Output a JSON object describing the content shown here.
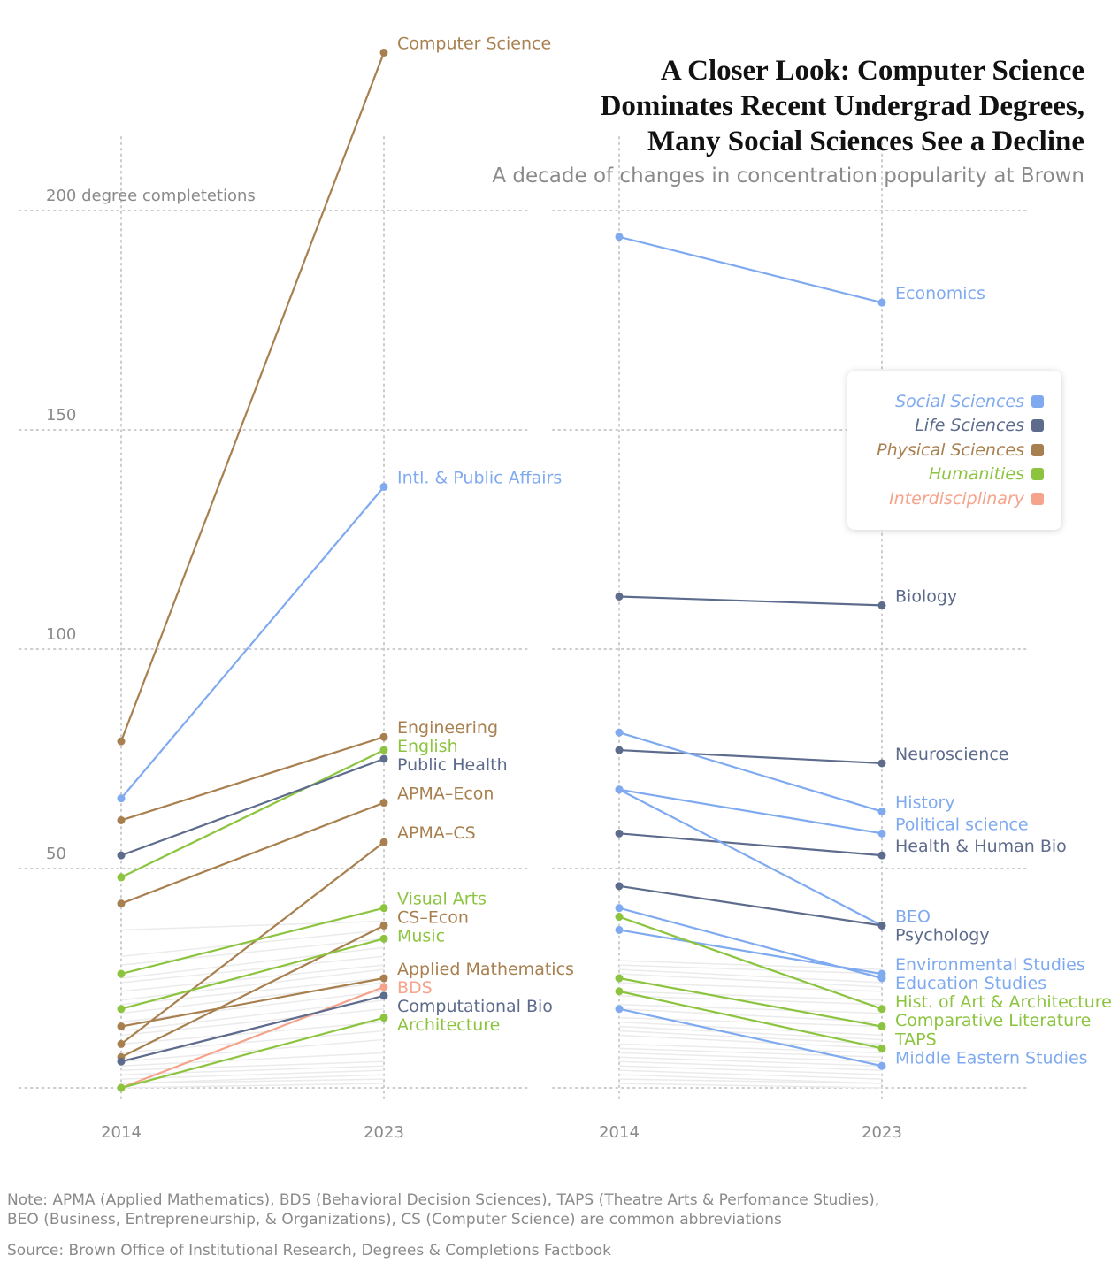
{
  "title_lines": [
    "A Closer Look: Computer Science",
    "Dominates Recent Undergrad Degrees,",
    "Many Social Sciences See a Decline"
  ],
  "subtitle": "A decade of changes in concentration popularity at Brown",
  "note_lines": [
    "Note: APMA (Applied Mathematics), BDS (Behavioral Decision Sciences), TAPS (Theatre Arts & Perfomance Studies),",
    "BEO (Business, Entrepreneurship, & Organizations), CS (Computer Science) are common abbreviations"
  ],
  "source": "Source: Brown Office of Institutional Research, Degrees & Completions Factbook",
  "colors": {
    "Social Sciences": "#7faaf0",
    "Life Sciences": "#5d6b8c",
    "Physical Sciences": "#a8804f",
    "Humanities": "#8cc43f",
    "Interdisciplinary": "#f5a38a",
    "background_lines": "#ebebeb",
    "grid": "#cccccc",
    "axis_text": "#8a8a8a"
  },
  "legend": {
    "items": [
      {
        "label": "Social Sciences",
        "color": "#7faaf0"
      },
      {
        "label": "Life Sciences",
        "color": "#5d6b8c"
      },
      {
        "label": "Physical Sciences",
        "color": "#a8804f"
      },
      {
        "label": "Humanities",
        "color": "#8cc43f"
      },
      {
        "label": "Interdisciplinary",
        "color": "#f5a38a"
      }
    ]
  },
  "chart_data": [
    {
      "type": "line",
      "panel": "left",
      "x": [
        "2014",
        "2023"
      ],
      "ylim": [
        0,
        220
      ],
      "yticks": [
        {
          "value": 50,
          "label": "50"
        },
        {
          "value": 100,
          "label": "100"
        },
        {
          "value": 150,
          "label": "150"
        },
        {
          "value": 200,
          "label": "200 degree completetions"
        }
      ],
      "series": [
        {
          "name": "Computer Science",
          "group": "Physical Sciences",
          "values": [
            79,
            236
          ]
        },
        {
          "name": "Intl. & Public Affairs",
          "group": "Social Sciences",
          "values": [
            66,
            137
          ]
        },
        {
          "name": "Engineering",
          "group": "Physical Sciences",
          "values": [
            61,
            80
          ]
        },
        {
          "name": "English",
          "group": "Humanities",
          "values": [
            48,
            77
          ]
        },
        {
          "name": "Public Health",
          "group": "Life Sciences",
          "values": [
            53,
            75
          ]
        },
        {
          "name": "APMA–Econ",
          "group": "Physical Sciences",
          "values": [
            42,
            65
          ]
        },
        {
          "name": "APMA–CS",
          "group": "Physical Sciences",
          "values": [
            10,
            56
          ]
        },
        {
          "name": "Visual Arts",
          "group": "Humanities",
          "values": [
            26,
            41
          ]
        },
        {
          "name": "CS–Econ",
          "group": "Physical Sciences",
          "values": [
            7,
            37
          ]
        },
        {
          "name": "Music",
          "group": "Humanities",
          "values": [
            18,
            34
          ]
        },
        {
          "name": "Applied Mathematics",
          "group": "Physical Sciences",
          "values": [
            14,
            25
          ]
        },
        {
          "name": "BDS",
          "group": "Interdisciplinary",
          "values": [
            0,
            23
          ]
        },
        {
          "name": "Computational Bio",
          "group": "Life Sciences",
          "values": [
            6,
            21
          ]
        },
        {
          "name": "Architecture",
          "group": "Humanities",
          "values": [
            0,
            16
          ]
        }
      ],
      "background_series": [
        [
          36,
          38
        ],
        [
          30,
          36
        ],
        [
          28,
          34
        ],
        [
          25,
          32
        ],
        [
          24,
          30
        ],
        [
          22,
          28
        ],
        [
          20,
          27
        ],
        [
          19,
          25
        ],
        [
          17,
          24
        ],
        [
          15,
          22
        ],
        [
          13,
          20
        ],
        [
          12,
          18
        ],
        [
          10,
          15
        ],
        [
          8,
          13
        ],
        [
          6,
          11
        ],
        [
          5,
          8
        ],
        [
          4,
          6
        ],
        [
          3,
          5
        ],
        [
          2,
          4
        ],
        [
          1,
          3
        ],
        [
          1,
          2
        ],
        [
          0,
          1
        ]
      ]
    },
    {
      "type": "line",
      "panel": "right",
      "x": [
        "2014",
        "2023"
      ],
      "ylim": [
        0,
        220
      ],
      "series": [
        {
          "name": "Economics",
          "group": "Social Sciences",
          "values": [
            194,
            179
          ]
        },
        {
          "name": "Biology",
          "group": "Life Sciences",
          "values": [
            112,
            110
          ]
        },
        {
          "name": "Neuroscience",
          "group": "Life Sciences",
          "values": [
            77,
            74
          ]
        },
        {
          "name": "History",
          "group": "Social Sciences",
          "values": [
            81,
            63
          ]
        },
        {
          "name": "Political science",
          "group": "Social Sciences",
          "values": [
            68,
            58
          ]
        },
        {
          "name": "Health & Human Bio",
          "group": "Life Sciences",
          "values": [
            58,
            53
          ]
        },
        {
          "name": "BEO",
          "group": "Social Sciences",
          "values": [
            68,
            37
          ]
        },
        {
          "name": "Psychology",
          "group": "Life Sciences",
          "values": [
            46,
            37
          ]
        },
        {
          "name": "Environmental Studies",
          "group": "Social Sciences",
          "values": [
            36,
            26
          ]
        },
        {
          "name": "Education Studies",
          "group": "Social Sciences",
          "values": [
            41,
            25
          ]
        },
        {
          "name": "Hist. of Art & Architecture",
          "group": "Humanities",
          "values": [
            39,
            18
          ]
        },
        {
          "name": "Comparative Literature",
          "group": "Humanities",
          "values": [
            25,
            14
          ]
        },
        {
          "name": "TAPS",
          "group": "Humanities",
          "values": [
            22,
            9
          ]
        },
        {
          "name": "Middle Eastern Studies",
          "group": "Social Sciences",
          "values": [
            18,
            5
          ]
        }
      ],
      "background_series": [
        [
          29,
          27
        ],
        [
          28,
          26
        ],
        [
          27,
          24
        ],
        [
          26,
          23
        ],
        [
          24,
          22
        ],
        [
          22,
          20
        ],
        [
          21,
          19
        ],
        [
          19,
          17
        ],
        [
          18,
          15
        ],
        [
          16,
          14
        ],
        [
          15,
          12
        ],
        [
          14,
          11
        ],
        [
          13,
          10
        ],
        [
          12,
          9
        ],
        [
          10,
          8
        ],
        [
          9,
          7
        ],
        [
          8,
          6
        ],
        [
          7,
          5
        ],
        [
          6,
          4
        ],
        [
          5,
          3
        ],
        [
          4,
          2
        ],
        [
          3,
          1
        ],
        [
          2,
          1
        ],
        [
          1,
          0
        ]
      ]
    }
  ]
}
